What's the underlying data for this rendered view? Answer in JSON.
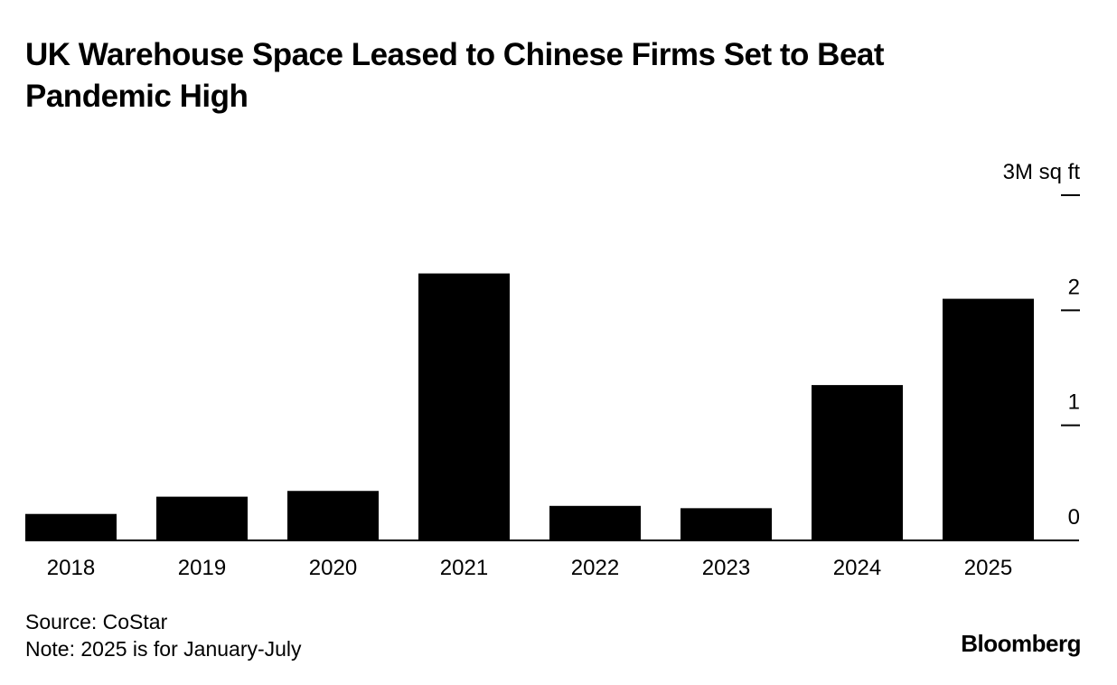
{
  "title": "UK Warehouse Space Leased to Chinese Firms Set to Beat Pandemic High",
  "source": "Source: CoStar",
  "note": "Note: 2025 is for January-July",
  "brand": "Bloomberg",
  "chart_data": {
    "type": "bar",
    "categories": [
      "2018",
      "2019",
      "2020",
      "2021",
      "2022",
      "2023",
      "2024",
      "2025"
    ],
    "values": [
      0.23,
      0.38,
      0.43,
      2.32,
      0.3,
      0.28,
      1.35,
      2.1
    ],
    "ylabel": "3M sq ft",
    "yticks": [
      0,
      1,
      2,
      3
    ],
    "ytick_labels": [
      "0",
      "1",
      "2",
      "3M sq ft"
    ],
    "ylim": [
      0,
      3
    ],
    "grid": false,
    "legend": "none",
    "bar_color": "#000000",
    "axis_position": "right"
  }
}
